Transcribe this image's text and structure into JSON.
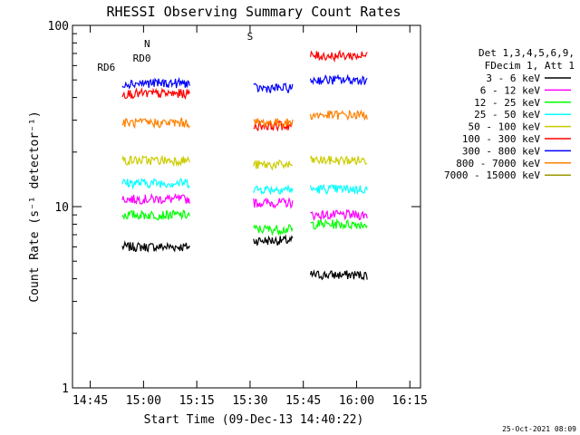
{
  "chart_data": {
    "type": "line",
    "title": "RHESSI Observing Summary Count Rates",
    "xlabel": "Start Time (09-Dec-13 14:40:22)",
    "ylabel": "Count Rate (s⁻¹ detector⁻¹)",
    "ylog": true,
    "ylim": [
      1,
      100
    ],
    "xlim_minutes_after_1440": [
      0,
      98
    ],
    "x_ticks": [
      "14:45",
      "15:00",
      "15:15",
      "15:30",
      "15:45",
      "16:00",
      "16:15"
    ],
    "y_ticks": [
      "1",
      "10",
      "100"
    ],
    "grid": false,
    "legend_position": "right",
    "legend_header": [
      "Det 1,3,4,5,6,9,",
      "FDecim 1, Att 1"
    ],
    "timestamp": "25-Oct-2021 08:09",
    "annotations": {
      "saa_label": "S",
      "night_label": "N",
      "rd0_label": "RD0",
      "rd6_label": "RD6"
    },
    "intervals": [
      {
        "start": 14,
        "end": 33
      },
      {
        "start": 51,
        "end": 62
      },
      {
        "start": 67,
        "end": 83
      }
    ],
    "series": [
      {
        "name": "3 - 6 keV",
        "color": "#000000",
        "values": [
          6.0,
          6.5,
          4.2
        ]
      },
      {
        "name": "6 - 12 keV",
        "color": "#ff00ff",
        "values": [
          11.0,
          10.5,
          9.0
        ]
      },
      {
        "name": "12 - 25 keV",
        "color": "#00ff00",
        "values": [
          9.0,
          7.5,
          8.0
        ]
      },
      {
        "name": "25 - 50 keV",
        "color": "#00ffff",
        "values": [
          13.5,
          12.5,
          12.5
        ]
      },
      {
        "name": "50 - 100 keV",
        "color": "#cccc00",
        "values": [
          18.0,
          17.0,
          18.0
        ]
      },
      {
        "name": "100 - 300 keV",
        "color": "#ff0000",
        "values": [
          42.0,
          28.0,
          68.0
        ]
      },
      {
        "name": "300 - 800 keV",
        "color": "#0000ff",
        "values": [
          48.0,
          45.0,
          50.0
        ]
      },
      {
        "name": "800 - 7000 keV",
        "color": "#ff8000",
        "values": [
          29.0,
          29.0,
          32.0
        ]
      },
      {
        "name": "7000 - 15000 keV",
        "color": "#999900",
        "values": [
          null,
          null,
          null
        ]
      }
    ]
  }
}
